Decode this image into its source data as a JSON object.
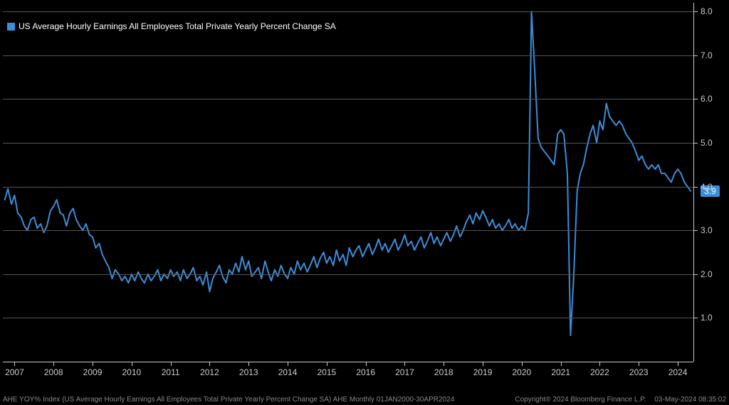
{
  "chart": {
    "type": "line",
    "background_color": "#000000",
    "grid_color": "#555555",
    "axis_color": "#cccccc",
    "text_color": "#cccccc",
    "line_color": "#3b8ed8",
    "line_width": 2,
    "legend": {
      "label": "US Average Hourly Earnings All Employees Total Private Yearly Percent Change SA",
      "swatch_color": "#3b8ed8",
      "font_size": 12,
      "text_color": "#ffffff"
    },
    "y_axis": {
      "min": 0.0,
      "max": 8.2,
      "ticks": [
        1.0,
        2.0,
        3.0,
        4.0,
        5.0,
        6.0,
        7.0,
        8.0
      ],
      "tick_labels": [
        "1.0",
        "2.0",
        "3.0",
        "4.0",
        "5.0",
        "6.0",
        "7.0",
        "8.0"
      ],
      "gridlines": [
        1.0,
        2.0,
        3.0,
        4.0,
        5.0,
        6.0,
        7.0,
        8.0
      ],
      "label_font_size": 12
    },
    "x_axis": {
      "min": 2006.7,
      "max": 2024.4,
      "ticks": [
        2007,
        2008,
        2009,
        2010,
        2011,
        2012,
        2013,
        2014,
        2015,
        2016,
        2017,
        2018,
        2019,
        2020,
        2021,
        2022,
        2023,
        2024
      ],
      "tick_labels": [
        "2007",
        "2008",
        "2009",
        "2010",
        "2011",
        "2012",
        "2013",
        "2014",
        "2015",
        "2016",
        "2017",
        "2018",
        "2019",
        "2020",
        "2021",
        "2022",
        "2023",
        "2024"
      ],
      "label_font_size": 12
    },
    "last_value": {
      "value": 3.9,
      "label": "3.9",
      "badge_color": "#3b8ed8",
      "badge_text_color": "#ffffff"
    },
    "series": [
      {
        "x": 2006.75,
        "y": 3.7
      },
      {
        "x": 2006.83,
        "y": 3.95
      },
      {
        "x": 2006.92,
        "y": 3.6
      },
      {
        "x": 2007.0,
        "y": 3.8
      },
      {
        "x": 2007.08,
        "y": 3.4
      },
      {
        "x": 2007.17,
        "y": 3.3
      },
      {
        "x": 2007.25,
        "y": 3.1
      },
      {
        "x": 2007.33,
        "y": 3.0
      },
      {
        "x": 2007.42,
        "y": 3.25
      },
      {
        "x": 2007.5,
        "y": 3.3
      },
      {
        "x": 2007.58,
        "y": 3.05
      },
      {
        "x": 2007.67,
        "y": 3.15
      },
      {
        "x": 2007.75,
        "y": 2.95
      },
      {
        "x": 2007.83,
        "y": 3.1
      },
      {
        "x": 2007.92,
        "y": 3.45
      },
      {
        "x": 2008.0,
        "y": 3.55
      },
      {
        "x": 2008.08,
        "y": 3.7
      },
      {
        "x": 2008.17,
        "y": 3.4
      },
      {
        "x": 2008.25,
        "y": 3.35
      },
      {
        "x": 2008.33,
        "y": 3.1
      },
      {
        "x": 2008.42,
        "y": 3.4
      },
      {
        "x": 2008.5,
        "y": 3.5
      },
      {
        "x": 2008.58,
        "y": 3.25
      },
      {
        "x": 2008.67,
        "y": 3.1
      },
      {
        "x": 2008.75,
        "y": 3.0
      },
      {
        "x": 2008.83,
        "y": 3.15
      },
      {
        "x": 2008.92,
        "y": 2.9
      },
      {
        "x": 2009.0,
        "y": 2.85
      },
      {
        "x": 2009.08,
        "y": 2.6
      },
      {
        "x": 2009.17,
        "y": 2.7
      },
      {
        "x": 2009.25,
        "y": 2.45
      },
      {
        "x": 2009.33,
        "y": 2.3
      },
      {
        "x": 2009.42,
        "y": 2.15
      },
      {
        "x": 2009.5,
        "y": 1.9
      },
      {
        "x": 2009.58,
        "y": 2.1
      },
      {
        "x": 2009.67,
        "y": 2.0
      },
      {
        "x": 2009.75,
        "y": 1.85
      },
      {
        "x": 2009.83,
        "y": 1.95
      },
      {
        "x": 2009.92,
        "y": 1.8
      },
      {
        "x": 2010.0,
        "y": 2.0
      },
      {
        "x": 2010.08,
        "y": 1.85
      },
      {
        "x": 2010.17,
        "y": 2.05
      },
      {
        "x": 2010.25,
        "y": 1.9
      },
      {
        "x": 2010.33,
        "y": 1.8
      },
      {
        "x": 2010.42,
        "y": 2.0
      },
      {
        "x": 2010.5,
        "y": 1.85
      },
      {
        "x": 2010.58,
        "y": 1.95
      },
      {
        "x": 2010.67,
        "y": 2.1
      },
      {
        "x": 2010.75,
        "y": 1.85
      },
      {
        "x": 2010.83,
        "y": 2.0
      },
      {
        "x": 2010.92,
        "y": 1.9
      },
      {
        "x": 2011.0,
        "y": 2.1
      },
      {
        "x": 2011.08,
        "y": 1.95
      },
      {
        "x": 2011.17,
        "y": 2.05
      },
      {
        "x": 2011.25,
        "y": 1.85
      },
      {
        "x": 2011.33,
        "y": 2.1
      },
      {
        "x": 2011.42,
        "y": 1.9
      },
      {
        "x": 2011.5,
        "y": 2.0
      },
      {
        "x": 2011.58,
        "y": 2.15
      },
      {
        "x": 2011.67,
        "y": 1.85
      },
      {
        "x": 2011.75,
        "y": 1.95
      },
      {
        "x": 2011.83,
        "y": 1.75
      },
      {
        "x": 2011.92,
        "y": 2.05
      },
      {
        "x": 2012.0,
        "y": 1.6
      },
      {
        "x": 2012.08,
        "y": 1.9
      },
      {
        "x": 2012.17,
        "y": 2.05
      },
      {
        "x": 2012.25,
        "y": 2.2
      },
      {
        "x": 2012.33,
        "y": 1.95
      },
      {
        "x": 2012.42,
        "y": 1.8
      },
      {
        "x": 2012.5,
        "y": 2.1
      },
      {
        "x": 2012.58,
        "y": 2.0
      },
      {
        "x": 2012.67,
        "y": 2.25
      },
      {
        "x": 2012.75,
        "y": 2.05
      },
      {
        "x": 2012.83,
        "y": 2.4
      },
      {
        "x": 2012.92,
        "y": 2.1
      },
      {
        "x": 2013.0,
        "y": 2.3
      },
      {
        "x": 2013.08,
        "y": 1.95
      },
      {
        "x": 2013.17,
        "y": 2.05
      },
      {
        "x": 2013.25,
        "y": 2.15
      },
      {
        "x": 2013.33,
        "y": 1.9
      },
      {
        "x": 2013.42,
        "y": 2.3
      },
      {
        "x": 2013.5,
        "y": 2.05
      },
      {
        "x": 2013.58,
        "y": 1.85
      },
      {
        "x": 2013.67,
        "y": 2.1
      },
      {
        "x": 2013.75,
        "y": 1.95
      },
      {
        "x": 2013.83,
        "y": 2.2
      },
      {
        "x": 2013.92,
        "y": 2.0
      },
      {
        "x": 2014.0,
        "y": 1.9
      },
      {
        "x": 2014.08,
        "y": 2.15
      },
      {
        "x": 2014.17,
        "y": 2.0
      },
      {
        "x": 2014.25,
        "y": 2.3
      },
      {
        "x": 2014.33,
        "y": 2.1
      },
      {
        "x": 2014.42,
        "y": 2.25
      },
      {
        "x": 2014.5,
        "y": 2.05
      },
      {
        "x": 2014.58,
        "y": 2.2
      },
      {
        "x": 2014.67,
        "y": 2.4
      },
      {
        "x": 2014.75,
        "y": 2.15
      },
      {
        "x": 2014.83,
        "y": 2.35
      },
      {
        "x": 2014.92,
        "y": 2.5
      },
      {
        "x": 2015.0,
        "y": 2.25
      },
      {
        "x": 2015.08,
        "y": 2.4
      },
      {
        "x": 2015.17,
        "y": 2.2
      },
      {
        "x": 2015.25,
        "y": 2.55
      },
      {
        "x": 2015.33,
        "y": 2.3
      },
      {
        "x": 2015.42,
        "y": 2.45
      },
      {
        "x": 2015.5,
        "y": 2.2
      },
      {
        "x": 2015.58,
        "y": 2.6
      },
      {
        "x": 2015.67,
        "y": 2.4
      },
      {
        "x": 2015.75,
        "y": 2.55
      },
      {
        "x": 2015.83,
        "y": 2.65
      },
      {
        "x": 2015.92,
        "y": 2.4
      },
      {
        "x": 2016.0,
        "y": 2.55
      },
      {
        "x": 2016.08,
        "y": 2.7
      },
      {
        "x": 2016.17,
        "y": 2.45
      },
      {
        "x": 2016.25,
        "y": 2.6
      },
      {
        "x": 2016.33,
        "y": 2.8
      },
      {
        "x": 2016.42,
        "y": 2.55
      },
      {
        "x": 2016.5,
        "y": 2.7
      },
      {
        "x": 2016.58,
        "y": 2.5
      },
      {
        "x": 2016.67,
        "y": 2.65
      },
      {
        "x": 2016.75,
        "y": 2.8
      },
      {
        "x": 2016.83,
        "y": 2.55
      },
      {
        "x": 2016.92,
        "y": 2.7
      },
      {
        "x": 2017.0,
        "y": 2.9
      },
      {
        "x": 2017.08,
        "y": 2.65
      },
      {
        "x": 2017.17,
        "y": 2.75
      },
      {
        "x": 2017.25,
        "y": 2.55
      },
      {
        "x": 2017.33,
        "y": 2.7
      },
      {
        "x": 2017.42,
        "y": 2.85
      },
      {
        "x": 2017.5,
        "y": 2.6
      },
      {
        "x": 2017.58,
        "y": 2.75
      },
      {
        "x": 2017.67,
        "y": 2.95
      },
      {
        "x": 2017.75,
        "y": 2.7
      },
      {
        "x": 2017.83,
        "y": 2.85
      },
      {
        "x": 2017.92,
        "y": 2.65
      },
      {
        "x": 2018.0,
        "y": 2.8
      },
      {
        "x": 2018.08,
        "y": 2.95
      },
      {
        "x": 2018.17,
        "y": 2.75
      },
      {
        "x": 2018.25,
        "y": 2.9
      },
      {
        "x": 2018.33,
        "y": 3.1
      },
      {
        "x": 2018.42,
        "y": 2.85
      },
      {
        "x": 2018.5,
        "y": 3.0
      },
      {
        "x": 2018.58,
        "y": 3.2
      },
      {
        "x": 2018.67,
        "y": 3.35
      },
      {
        "x": 2018.75,
        "y": 3.15
      },
      {
        "x": 2018.83,
        "y": 3.4
      },
      {
        "x": 2018.92,
        "y": 3.25
      },
      {
        "x": 2019.0,
        "y": 3.45
      },
      {
        "x": 2019.08,
        "y": 3.3
      },
      {
        "x": 2019.17,
        "y": 3.1
      },
      {
        "x": 2019.25,
        "y": 3.25
      },
      {
        "x": 2019.33,
        "y": 3.05
      },
      {
        "x": 2019.42,
        "y": 3.15
      },
      {
        "x": 2019.5,
        "y": 3.0
      },
      {
        "x": 2019.58,
        "y": 3.1
      },
      {
        "x": 2019.67,
        "y": 3.25
      },
      {
        "x": 2019.75,
        "y": 3.05
      },
      {
        "x": 2019.83,
        "y": 3.15
      },
      {
        "x": 2019.92,
        "y": 3.0
      },
      {
        "x": 2020.0,
        "y": 3.1
      },
      {
        "x": 2020.08,
        "y": 3.0
      },
      {
        "x": 2020.17,
        "y": 3.4
      },
      {
        "x": 2020.25,
        "y": 8.0
      },
      {
        "x": 2020.33,
        "y": 6.7
      },
      {
        "x": 2020.42,
        "y": 5.1
      },
      {
        "x": 2020.5,
        "y": 4.9
      },
      {
        "x": 2020.58,
        "y": 4.8
      },
      {
        "x": 2020.67,
        "y": 4.7
      },
      {
        "x": 2020.75,
        "y": 4.6
      },
      {
        "x": 2020.83,
        "y": 4.5
      },
      {
        "x": 2020.92,
        "y": 5.2
      },
      {
        "x": 2021.0,
        "y": 5.3
      },
      {
        "x": 2021.08,
        "y": 5.2
      },
      {
        "x": 2021.17,
        "y": 4.3
      },
      {
        "x": 2021.25,
        "y": 0.6
      },
      {
        "x": 2021.33,
        "y": 1.9
      },
      {
        "x": 2021.42,
        "y": 3.9
      },
      {
        "x": 2021.5,
        "y": 4.3
      },
      {
        "x": 2021.58,
        "y": 4.5
      },
      {
        "x": 2021.67,
        "y": 4.9
      },
      {
        "x": 2021.75,
        "y": 5.2
      },
      {
        "x": 2021.83,
        "y": 5.4
      },
      {
        "x": 2021.92,
        "y": 5.0
      },
      {
        "x": 2022.0,
        "y": 5.5
      },
      {
        "x": 2022.08,
        "y": 5.3
      },
      {
        "x": 2022.17,
        "y": 5.9
      },
      {
        "x": 2022.25,
        "y": 5.6
      },
      {
        "x": 2022.33,
        "y": 5.5
      },
      {
        "x": 2022.42,
        "y": 5.4
      },
      {
        "x": 2022.5,
        "y": 5.5
      },
      {
        "x": 2022.58,
        "y": 5.4
      },
      {
        "x": 2022.67,
        "y": 5.2
      },
      {
        "x": 2022.75,
        "y": 5.1
      },
      {
        "x": 2022.83,
        "y": 5.0
      },
      {
        "x": 2022.92,
        "y": 4.8
      },
      {
        "x": 2023.0,
        "y": 4.6
      },
      {
        "x": 2023.08,
        "y": 4.7
      },
      {
        "x": 2023.17,
        "y": 4.5
      },
      {
        "x": 2023.25,
        "y": 4.4
      },
      {
        "x": 2023.33,
        "y": 4.5
      },
      {
        "x": 2023.42,
        "y": 4.4
      },
      {
        "x": 2023.5,
        "y": 4.5
      },
      {
        "x": 2023.58,
        "y": 4.3
      },
      {
        "x": 2023.67,
        "y": 4.3
      },
      {
        "x": 2023.75,
        "y": 4.2
      },
      {
        "x": 2023.83,
        "y": 4.1
      },
      {
        "x": 2023.92,
        "y": 4.3
      },
      {
        "x": 2024.0,
        "y": 4.4
      },
      {
        "x": 2024.08,
        "y": 4.3
      },
      {
        "x": 2024.17,
        "y": 4.1
      },
      {
        "x": 2024.25,
        "y": 4.0
      },
      {
        "x": 2024.33,
        "y": 3.9
      }
    ]
  },
  "footer": {
    "left": "AHE YOY% Index (US Average Hourly Earnings All Employees Total Private Yearly Percent Change SA) AHE  Monthly 01JAN2000-30APR2024",
    "copyright": "Copyright® 2024 Bloomberg Finance L.P.",
    "timestamp": "03-May-2024 08:35:02",
    "color": "#888888",
    "font_size": 10
  }
}
